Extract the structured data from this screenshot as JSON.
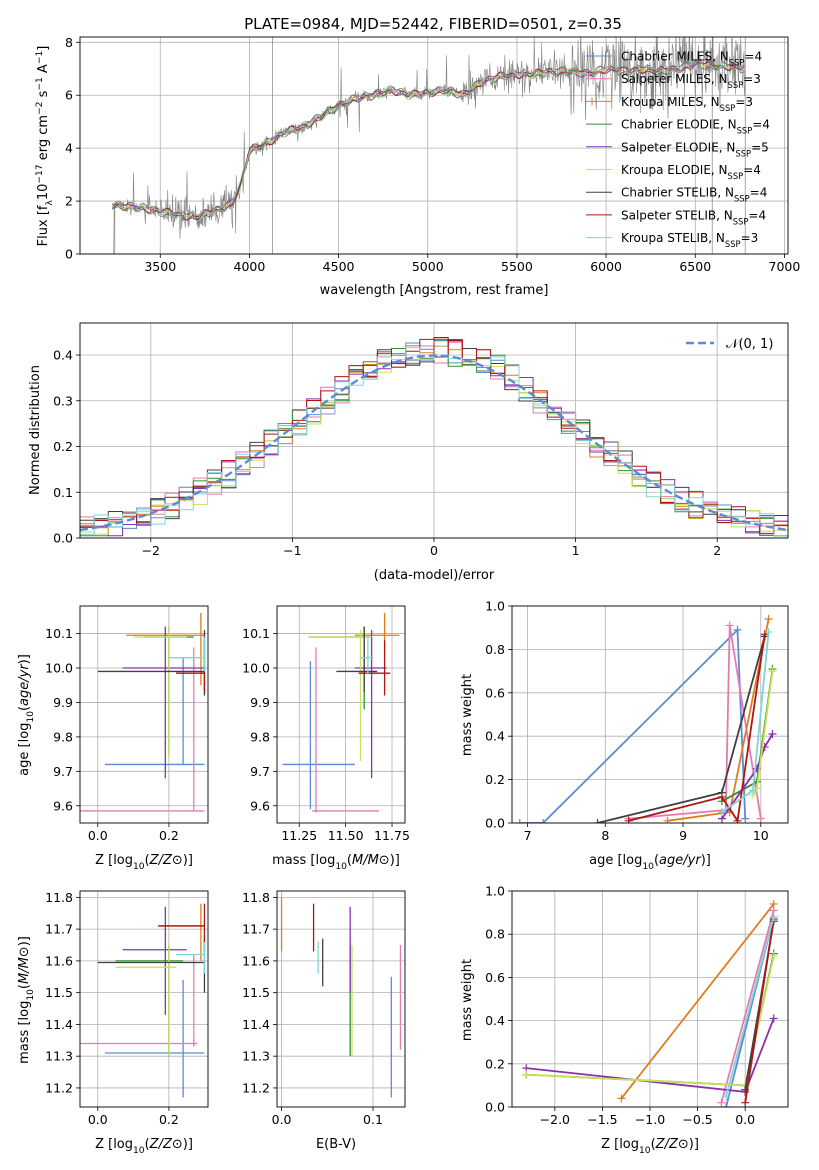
{
  "figure_title": "PLATE=0984, MJD=52442, FIBERID=0501, z=0.35",
  "models": [
    {
      "name": "Chabrier MILES",
      "nssp": "4",
      "color": "#5b8bd6"
    },
    {
      "name": "Salpeter MILES",
      "nssp": "3",
      "color": "#e67ab0"
    },
    {
      "name": "Kroupa MILES",
      "nssp": "3",
      "color": "#e07b1f"
    },
    {
      "name": "Chabrier ELODIE",
      "nssp": "4",
      "color": "#2f8f2f"
    },
    {
      "name": "Salpeter ELODIE",
      "nssp": "5",
      "color": "#8b2fb0"
    },
    {
      "name": "Kroupa ELODIE",
      "nssp": "4",
      "color": "#c8e05a"
    },
    {
      "name": "Chabrier STELIB",
      "nssp": "4",
      "color": "#404040"
    },
    {
      "name": "Salpeter STELIB",
      "nssp": "4",
      "color": "#b01515"
    },
    {
      "name": "Kroupa STELIB",
      "nssp": "3",
      "color": "#7fd6d6"
    }
  ],
  "chart_data": [
    {
      "id": "spectrum",
      "type": "line",
      "xlabel": "wavelength [Angstrom, rest frame]",
      "ylabel_prefix": "Flux [f",
      "ylabel_mid": "10",
      "ylabel_suffix": " erg cm",
      "ylabel_tail": " s",
      "ylabel_end": " A",
      "xlim": [
        3050,
        7020
      ],
      "ylim": [
        0,
        8.2
      ],
      "xticks": [
        3500,
        4000,
        4500,
        5000,
        5500,
        6000,
        6500,
        7000
      ],
      "yticks": [
        0,
        2,
        4,
        6,
        8
      ],
      "data_color": "#808080",
      "continuum": [
        [
          3230,
          1.85
        ],
        [
          3300,
          1.8
        ],
        [
          3400,
          1.75
        ],
        [
          3500,
          1.6
        ],
        [
          3600,
          1.5
        ],
        [
          3700,
          1.4
        ],
        [
          3800,
          1.6
        ],
        [
          3900,
          1.9
        ],
        [
          3950,
          2.6
        ],
        [
          4000,
          3.9
        ],
        [
          4100,
          4.2
        ],
        [
          4200,
          4.6
        ],
        [
          4300,
          4.8
        ],
        [
          4400,
          5.2
        ],
        [
          4500,
          5.6
        ],
        [
          4600,
          5.9
        ],
        [
          4700,
          6.0
        ],
        [
          4800,
          6.2
        ],
        [
          4900,
          6.0
        ],
        [
          5000,
          6.1
        ],
        [
          5100,
          6.2
        ],
        [
          5200,
          6.0
        ],
        [
          5300,
          6.5
        ],
        [
          5400,
          6.7
        ],
        [
          5500,
          6.8
        ],
        [
          5600,
          6.8
        ],
        [
          5700,
          6.9
        ],
        [
          5800,
          6.9
        ],
        [
          5900,
          6.8
        ],
        [
          6000,
          7.0
        ],
        [
          6100,
          6.9
        ],
        [
          6200,
          7.0
        ],
        [
          6300,
          6.9
        ],
        [
          6400,
          7.0
        ],
        [
          6500,
          7.2
        ],
        [
          6600,
          7.1
        ],
        [
          6700,
          7.1
        ],
        [
          6780,
          7.0
        ]
      ]
    },
    {
      "id": "residuals",
      "type": "bar",
      "xlabel": "(data-model)/error",
      "ylabel": "Normed distribution",
      "xlim": [
        -2.5,
        2.5
      ],
      "ylim": [
        0,
        0.47
      ],
      "xticks": [
        -2,
        -1,
        0,
        1,
        2
      ],
      "yticks": [
        0.0,
        0.1,
        0.2,
        0.3,
        0.4
      ],
      "legend": "𝒩(0, 1)",
      "gaussian_color": "#5b8bd6",
      "bin_width": 0.1
    },
    {
      "id": "age-vs-z",
      "type": "scatter",
      "xlabel": "Z [log10(Z/Z⊙)]",
      "ylabel": "age  [log10(age/yr)]",
      "xlim": [
        -0.05,
        0.31
      ],
      "ylim": [
        9.55,
        10.18
      ],
      "xticks": [
        0.0,
        0.2
      ],
      "yticks": [
        9.6,
        9.7,
        9.8,
        9.9,
        10.0,
        10.1
      ],
      "points": [
        {
          "m": 0,
          "x": 0.24,
          "y": 9.72,
          "ex": [
            0.02,
            0.3
          ],
          "ey": [
            9.72,
            10.03
          ]
        },
        {
          "m": 1,
          "x": 0.27,
          "y": 9.585,
          "ex": [
            -0.05,
            0.3
          ],
          "ey": [
            9.585,
            10.06
          ]
        },
        {
          "m": 2,
          "x": 0.29,
          "y": 10.095,
          "ex": [
            0.08,
            0.3
          ],
          "ey": [
            9.95,
            10.16
          ]
        },
        {
          "m": 3,
          "x": 0.2,
          "y": 10.09,
          "ex": [
            0.13,
            0.27
          ],
          "ey": [
            9.75,
            10.12
          ]
        },
        {
          "m": 4,
          "x": 0.19,
          "y": 10.0,
          "ex": [
            0.07,
            0.3
          ],
          "ey": [
            9.68,
            10.12
          ]
        },
        {
          "m": 5,
          "x": 0.2,
          "y": 10.09,
          "ex": [
            0.1,
            0.25
          ],
          "ey": [
            9.73,
            10.12
          ]
        },
        {
          "m": 6,
          "x": 0.3,
          "y": 9.99,
          "ex": [
            0.0,
            0.3
          ],
          "ey": [
            9.92,
            10.11
          ]
        },
        {
          "m": 7,
          "x": 0.3,
          "y": 9.985,
          "ex": [
            0.22,
            0.3
          ],
          "ey": [
            9.93,
            10.09
          ]
        },
        {
          "m": 8,
          "x": 0.3,
          "y": 10.03,
          "ex": [
            0.2,
            0.3
          ],
          "ey": [
            9.99,
            10.09
          ]
        }
      ]
    },
    {
      "id": "age-vs-mass",
      "type": "scatter",
      "xlabel": "mass [log10(M/M⊙)]",
      "ylabel": "",
      "xlim": [
        11.13,
        11.82
      ],
      "ylim": [
        9.55,
        10.18
      ],
      "xticks": [
        11.25,
        11.5,
        11.75
      ],
      "yticks": [
        9.6,
        9.7,
        9.8,
        9.9,
        10.0,
        10.1
      ],
      "points": [
        {
          "m": 0,
          "x": 11.31,
          "y": 9.72,
          "ex": [
            11.16,
            11.55
          ],
          "ey": [
            9.59,
            10.02
          ]
        },
        {
          "m": 1,
          "x": 11.34,
          "y": 9.585,
          "ex": [
            11.32,
            11.68
          ],
          "ey": [
            9.58,
            10.06
          ]
        },
        {
          "m": 2,
          "x": 11.71,
          "y": 10.095,
          "ex": [
            11.55,
            11.79
          ],
          "ey": [
            10.04,
            10.16
          ]
        },
        {
          "m": 3,
          "x": 11.6,
          "y": 10.09,
          "ex": [
            11.3,
            11.64
          ],
          "ey": [
            9.88,
            10.12
          ]
        },
        {
          "m": 4,
          "x": 11.64,
          "y": 10.0,
          "ex": [
            11.55,
            11.72
          ],
          "ey": [
            9.68,
            10.11
          ]
        },
        {
          "m": 5,
          "x": 11.58,
          "y": 10.09,
          "ex": [
            11.3,
            11.64
          ],
          "ey": [
            9.73,
            10.11
          ]
        },
        {
          "m": 6,
          "x": 11.6,
          "y": 9.99,
          "ex": [
            11.45,
            11.67
          ],
          "ey": [
            9.93,
            10.12
          ]
        },
        {
          "m": 7,
          "x": 11.71,
          "y": 9.985,
          "ex": [
            11.57,
            11.74
          ],
          "ey": [
            9.92,
            10.08
          ]
        },
        {
          "m": 8,
          "x": 11.62,
          "y": 10.03,
          "ex": [
            11.58,
            11.65
          ],
          "ey": [
            9.98,
            10.09
          ]
        }
      ]
    },
    {
      "id": "mass-weight-vs-age",
      "type": "line",
      "xlabel": "age  [log10(age/yr)]",
      "ylabel": "mass weight",
      "xlim": [
        6.8,
        10.35
      ],
      "ylim": [
        0,
        1.0
      ],
      "xticks": [
        7,
        8,
        9,
        10
      ],
      "yticks": [
        0.0,
        0.2,
        0.4,
        0.6,
        0.8,
        1.0
      ],
      "series": [
        {
          "m": 0,
          "x": [
            6.9,
            7.2,
            9.7,
            9.8
          ],
          "y": [
            0.0,
            0.0,
            0.89,
            0.02
          ]
        },
        {
          "m": 1,
          "x": [
            8.3,
            9.55,
            9.6,
            10.0
          ],
          "y": [
            0.02,
            0.06,
            0.91,
            0.02
          ]
        },
        {
          "m": 2,
          "x": [
            8.8,
            9.6,
            10.1
          ],
          "y": [
            0.01,
            0.05,
            0.94
          ]
        },
        {
          "m": 3,
          "x": [
            9.5,
            9.95,
            10.15
          ],
          "y": [
            0.1,
            0.19,
            0.71
          ]
        },
        {
          "m": 4,
          "x": [
            9.5,
            9.95,
            10.05,
            10.15
          ],
          "y": [
            0.02,
            0.25,
            0.35,
            0.41
          ]
        },
        {
          "m": 5,
          "x": [
            9.9,
            9.95,
            10.15
          ],
          "y": [
            0.13,
            0.16,
            0.7
          ]
        },
        {
          "m": 6,
          "x": [
            7.9,
            9.5,
            10.05
          ],
          "y": [
            0.0,
            0.14,
            0.86
          ]
        },
        {
          "m": 7,
          "x": [
            8.3,
            9.5,
            9.7,
            10.05
          ],
          "y": [
            0.01,
            0.12,
            0.01,
            0.87
          ]
        },
        {
          "m": 8,
          "x": [
            9.5,
            9.9,
            10.1
          ],
          "y": [
            0.05,
            0.15,
            0.88
          ]
        }
      ]
    },
    {
      "id": "mass-vs-z",
      "type": "scatter",
      "xlabel": "Z [log10(Z/Z⊙)]",
      "ylabel": "mass [log10(M/M⊙)]",
      "xlim": [
        -0.05,
        0.31
      ],
      "ylim": [
        11.14,
        11.82
      ],
      "xticks": [
        0.0,
        0.2
      ],
      "yticks": [
        11.2,
        11.3,
        11.4,
        11.5,
        11.6,
        11.7,
        11.8
      ],
      "points": [
        {
          "m": 0,
          "x": 0.24,
          "y": 11.31,
          "ex": [
            0.02,
            0.3
          ],
          "ey": [
            11.17,
            11.54
          ]
        },
        {
          "m": 1,
          "x": 0.27,
          "y": 11.34,
          "ex": [
            -0.05,
            0.28
          ],
          "ey": [
            11.33,
            11.62
          ]
        },
        {
          "m": 2,
          "x": 0.29,
          "y": 11.71,
          "ex": [
            0.17,
            0.3
          ],
          "ey": [
            11.6,
            11.78
          ]
        },
        {
          "m": 3,
          "x": 0.2,
          "y": 11.6,
          "ex": [
            0.05,
            0.24
          ],
          "ey": [
            11.3,
            11.65
          ]
        },
        {
          "m": 4,
          "x": 0.19,
          "y": 11.635,
          "ex": [
            0.07,
            0.25
          ],
          "ey": [
            11.43,
            11.77
          ]
        },
        {
          "m": 5,
          "x": 0.2,
          "y": 11.58,
          "ex": [
            0.05,
            0.22
          ],
          "ey": [
            11.3,
            11.65
          ]
        },
        {
          "m": 6,
          "x": 0.3,
          "y": 11.595,
          "ex": [
            0.0,
            0.3
          ],
          "ey": [
            11.5,
            11.68
          ]
        },
        {
          "m": 7,
          "x": 0.3,
          "y": 11.71,
          "ex": [
            0.17,
            0.3
          ],
          "ey": [
            11.63,
            11.78
          ]
        },
        {
          "m": 8,
          "x": 0.3,
          "y": 11.62,
          "ex": [
            0.22,
            0.3
          ],
          "ey": [
            11.56,
            11.66
          ]
        }
      ]
    },
    {
      "id": "mass-vs-ebv",
      "type": "scatter",
      "xlabel": "E(B-V)",
      "ylabel": "",
      "xlim": [
        -0.005,
        0.135
      ],
      "ylim": [
        11.14,
        11.82
      ],
      "xticks": [
        0.0,
        0.1
      ],
      "yticks": [
        11.2,
        11.3,
        11.4,
        11.5,
        11.6,
        11.7,
        11.8
      ],
      "points": [
        {
          "m": 0,
          "x": 0.12,
          "y": 11.31,
          "ex": [
            0.12,
            0.12
          ],
          "ey": [
            11.17,
            11.55
          ]
        },
        {
          "m": 1,
          "x": 0.13,
          "y": 11.34,
          "ex": [
            0.13,
            0.13
          ],
          "ey": [
            11.32,
            11.65
          ]
        },
        {
          "m": 2,
          "x": 0.0,
          "y": 11.71,
          "ex": [
            0.0,
            0.0
          ],
          "ey": [
            11.63,
            11.8
          ]
        },
        {
          "m": 3,
          "x": 0.075,
          "y": 11.6,
          "ex": [
            0.075,
            0.075
          ],
          "ey": [
            11.3,
            11.66
          ]
        },
        {
          "m": 4,
          "x": 0.075,
          "y": 11.635,
          "ex": [
            0.075,
            0.075
          ],
          "ey": [
            11.5,
            11.77
          ]
        },
        {
          "m": 5,
          "x": 0.077,
          "y": 11.58,
          "ex": [
            0.077,
            0.077
          ],
          "ey": [
            11.3,
            11.65
          ]
        },
        {
          "m": 6,
          "x": 0.045,
          "y": 11.595,
          "ex": [
            0.045,
            0.045
          ],
          "ey": [
            11.52,
            11.67
          ]
        },
        {
          "m": 7,
          "x": 0.035,
          "y": 11.71,
          "ex": [
            0.035,
            0.035
          ],
          "ey": [
            11.63,
            11.78
          ]
        },
        {
          "m": 8,
          "x": 0.04,
          "y": 11.62,
          "ex": [
            0.04,
            0.04
          ],
          "ey": [
            11.56,
            11.66
          ]
        }
      ]
    },
    {
      "id": "mass-weight-vs-z",
      "type": "line",
      "xlabel": "Z [log10(Z/Z⊙)]",
      "ylabel": "mass weight",
      "xlim": [
        -2.45,
        0.45
      ],
      "ylim": [
        0,
        1.0
      ],
      "xticks": [
        -2.0,
        -1.5,
        -1.0,
        -0.5,
        0.0
      ],
      "yticks": [
        0.0,
        0.2,
        0.4,
        0.6,
        0.8,
        1.0
      ],
      "series": [
        {
          "m": 0,
          "x": [
            -0.2,
            0.3
          ],
          "y": [
            0.0,
            0.88
          ]
        },
        {
          "m": 1,
          "x": [
            -0.25,
            0.3
          ],
          "y": [
            0.02,
            0.91
          ]
        },
        {
          "m": 2,
          "x": [
            -1.3,
            0.3
          ],
          "y": [
            0.04,
            0.94
          ]
        },
        {
          "m": 3,
          "x": [
            -2.3,
            0.0,
            0.3
          ],
          "y": [
            0.15,
            0.1,
            0.71
          ]
        },
        {
          "m": 4,
          "x": [
            -2.3,
            0.0,
            0.3
          ],
          "y": [
            0.18,
            0.07,
            0.41
          ]
        },
        {
          "m": 5,
          "x": [
            -2.3,
            0.0,
            0.3
          ],
          "y": [
            0.15,
            0.1,
            0.7
          ]
        },
        {
          "m": 6,
          "x": [
            0.0,
            0.3
          ],
          "y": [
            0.08,
            0.86
          ]
        },
        {
          "m": 7,
          "x": [
            0.0,
            0.3
          ],
          "y": [
            0.02,
            0.87
          ]
        },
        {
          "m": 8,
          "x": [
            -0.2,
            0.3
          ],
          "y": [
            0.05,
            0.88
          ]
        }
      ]
    }
  ]
}
